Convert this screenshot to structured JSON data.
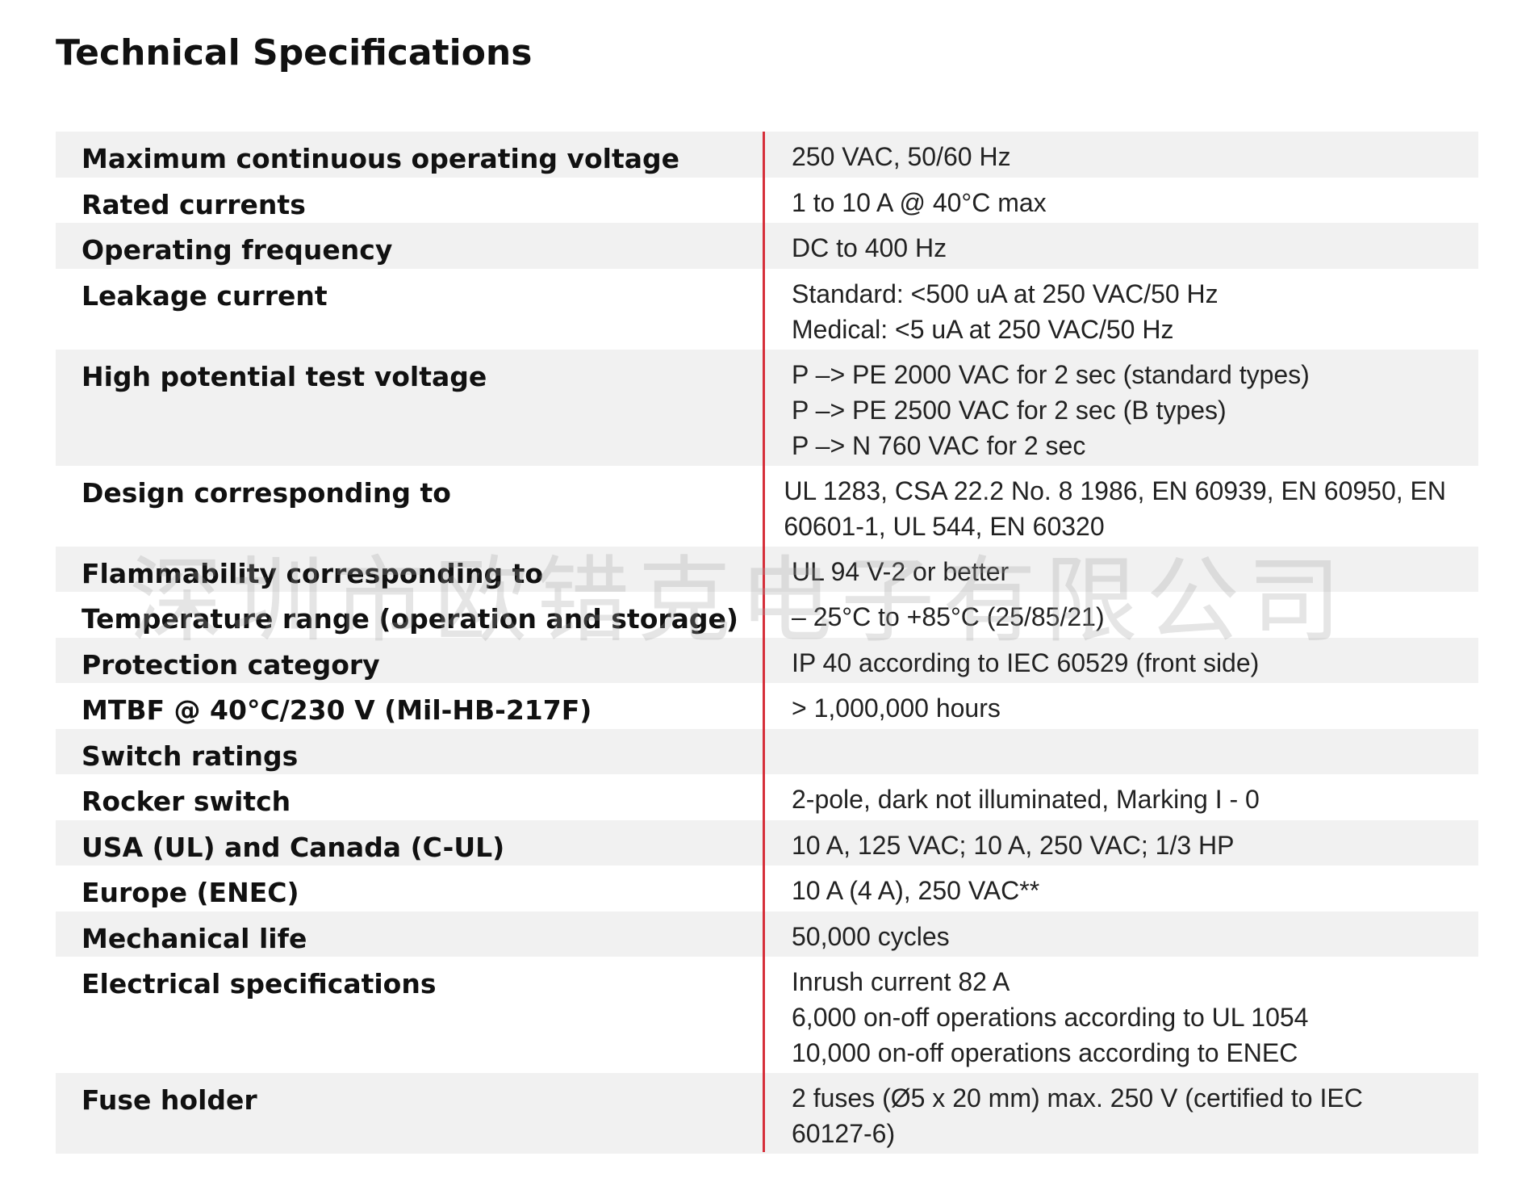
{
  "title": "Technical Specifications",
  "divider_color": "#d62f3a",
  "row_shading": "#f1f1f1",
  "rows": [
    {
      "label": "Maximum continuous operating voltage",
      "values": [
        "250 VAC, 50/60 Hz"
      ]
    },
    {
      "label": "Rated currents",
      "values": [
        "1 to 10 A @ 40°C max"
      ]
    },
    {
      "label": "Operating frequency",
      "values": [
        "DC to 400 Hz"
      ]
    },
    {
      "label": "Leakage current",
      "values": [
        "Standard: <500 uA at 250 VAC/50 Hz",
        "Medical: <5 uA at 250 VAC/50 Hz"
      ]
    },
    {
      "label": "High potential test voltage",
      "values": [
        "P –> PE 2000 VAC for 2 sec (standard types)",
        "P –> PE 2500 VAC for 2 sec (B types)",
        "P –> N 760 VAC for 2 sec"
      ]
    },
    {
      "label": "Design corresponding to",
      "values": [
        "UL 1283, CSA 22.2 No. 8 1986, EN 60939, EN 60950, EN",
        "60601-1, UL 544, EN 60320"
      ]
    },
    {
      "label": "Flammability corresponding to",
      "values": [
        "UL 94 V-2 or better"
      ]
    },
    {
      "label": "Temperature range (operation and storage)",
      "values": [
        "– 25°C to +85°C (25/85/21)"
      ]
    },
    {
      "label": "Protection category",
      "values": [
        "IP 40 according to IEC 60529 (front side)"
      ]
    },
    {
      "label": "MTBF @ 40°C/230 V (Mil-HB-217F)",
      "values": [
        "> 1,000,000 hours"
      ]
    },
    {
      "label": "Switch ratings",
      "values": []
    },
    {
      "label": "Rocker switch",
      "values": [
        "2-pole, dark not illuminated, Marking I - 0"
      ]
    },
    {
      "label": "USA (UL) and Canada (C-UL)",
      "values": [
        "10 A, 125 VAC; 10 A, 250 VAC; 1/3 HP"
      ]
    },
    {
      "label": "Europe (ENEC)",
      "values": [
        "10 A (4 A), 250 VAC**"
      ]
    },
    {
      "label": "Mechanical life",
      "values": [
        "50,000 cycles"
      ]
    },
    {
      "label": "Electrical specifications",
      "values": [
        "Inrush current 82 A",
        "6,000 on-off operations according to UL 1054",
        "10,000 on-off operations according to ENEC"
      ]
    },
    {
      "label": "Fuse holder",
      "values": [
        "2 fuses (Ø5 x 20 mm) max. 250 V (certified to IEC",
        "60127-6)"
      ]
    }
  ],
  "watermark": "深圳市欧错克电子有限公司"
}
